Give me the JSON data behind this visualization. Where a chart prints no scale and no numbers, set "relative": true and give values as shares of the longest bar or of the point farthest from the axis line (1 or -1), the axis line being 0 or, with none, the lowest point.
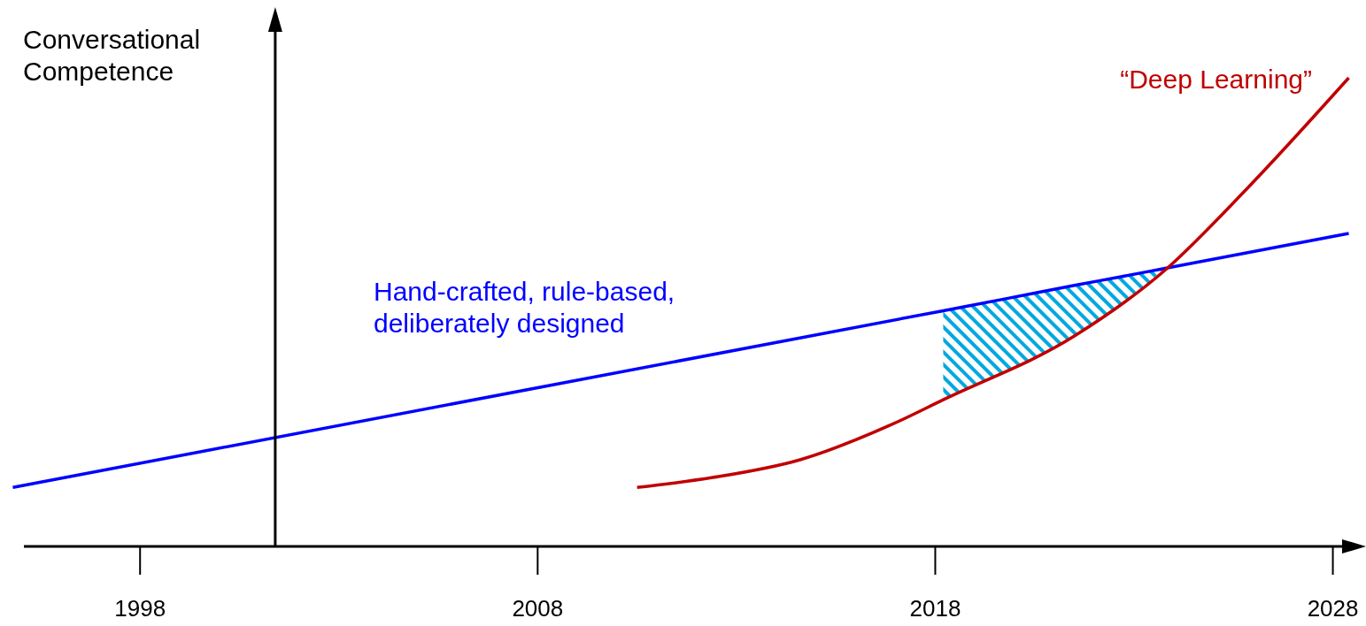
{
  "chart_data": {
    "type": "line",
    "ylabel": "Conversational Competence",
    "relative": true,
    "xlim": [
      1994.7,
      2028.7
    ],
    "xticks": [
      1998,
      2008,
      2018,
      2028
    ],
    "legend": false,
    "ref_lines": [
      {
        "axis": "x",
        "value": 2001.4,
        "color": "#000000"
      }
    ],
    "grid": false,
    "series": [
      {
        "name": "Hand-crafted, rule-based, deliberately designed",
        "color": "#0000ff",
        "x": [
          1994.8,
          2018.2,
          2019.8,
          2021.5,
          2022.7,
          2023.75,
          2028.4
        ],
        "values": [
          0.126,
          0.503,
          0.529,
          0.557,
          0.576,
          0.593,
          0.668
        ],
        "lower": [
          null,
          0.313,
          0.375,
          0.449,
          0.515,
          0.593,
          null
        ],
        "upper": [
          null,
          0.503,
          0.529,
          0.557,
          0.576,
          0.593,
          null
        ]
      },
      {
        "name": "“Deep Learning”",
        "color": "#c00000",
        "x": [
          2010.5,
          2012.4,
          2014.6,
          2016.9,
          2018.2,
          2021.5,
          2023.8,
          2025.8,
          2028.4
        ],
        "values": [
          0.126,
          0.147,
          0.185,
          0.26,
          0.313,
          0.449,
          0.591,
          0.76,
          1.0
        ]
      }
    ]
  }
}
